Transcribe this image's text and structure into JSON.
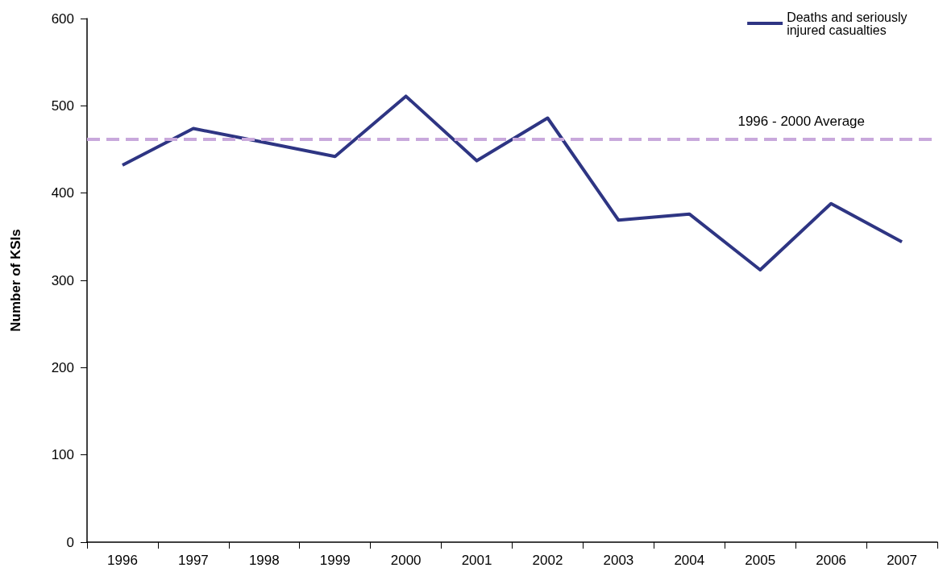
{
  "chart_data": {
    "type": "line",
    "ylabel": "Number of KSIs",
    "categories": [
      "1996",
      "1997",
      "1998",
      "1999",
      "2000",
      "2001",
      "2002",
      "2003",
      "2004",
      "2005",
      "2006",
      "2007"
    ],
    "series": [
      {
        "name": "Deaths and seriously injured casualties",
        "color": "#2e3583",
        "values": [
          432,
          474,
          458,
          442,
          511,
          437,
          486,
          369,
          376,
          312,
          388,
          344
        ]
      }
    ],
    "ylim": [
      0,
      600
    ],
    "yticks": [
      0,
      100,
      200,
      300,
      400,
      500,
      600
    ],
    "ref_lines": [
      {
        "axis": "y",
        "value": 462,
        "label": "1996 - 2000 Average",
        "color": "#c8a8dc",
        "line_style": "dashed"
      }
    ],
    "grid": false,
    "legend": "top right",
    "marker": "none",
    "line_style": "solid"
  }
}
